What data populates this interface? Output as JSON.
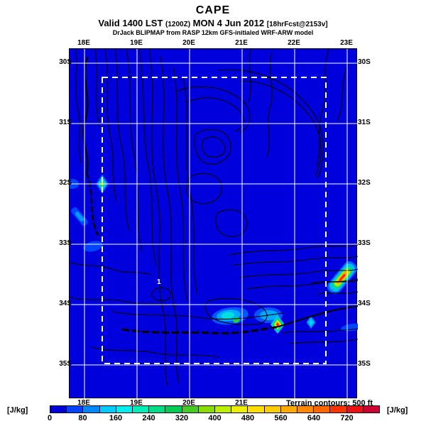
{
  "header": {
    "title": "CAPE",
    "valid_main_1": "Valid 1400 LST",
    "valid_small_1": "(1200Z)",
    "valid_main_2": "MON 4 Jun 2012",
    "valid_small_2": "[18hrFcst@2153v]",
    "model_line": "DrJack BLIPMAP from RASP 12km GFS-initialed WRF-ARW model"
  },
  "map": {
    "top_axis_labels": [
      "18E",
      "19E",
      "20E",
      "21E",
      "22E",
      "23E"
    ],
    "bottom_axis_labels": [
      "18E",
      "19E",
      "20E",
      "21E"
    ],
    "lat_labels": [
      "30S",
      "31S",
      "32S",
      "33S",
      "34S",
      "35S"
    ],
    "terrain_note": "Terrain contours: 500 ft",
    "contour_label": "1",
    "background_color": "#0000DD",
    "grid_color": "#FFFFFF",
    "contour_color": "#000000",
    "nest_boundary_color": "#FFFFFF"
  },
  "colorbar": {
    "unit_left": "[J/kg]",
    "unit_right": "[J/kg]",
    "tick_labels": [
      "0",
      "80",
      "160",
      "240",
      "320",
      "400",
      "480",
      "560",
      "640",
      "720"
    ],
    "min": 0,
    "max": 800,
    "step": 40,
    "colors": [
      "#0000DD",
      "#0044FF",
      "#0088FF",
      "#00CCFF",
      "#00EEEE",
      "#00EEBB",
      "#00DD88",
      "#00CC55",
      "#44CC22",
      "#88DD00",
      "#BBEE00",
      "#EEEE00",
      "#FFDD00",
      "#FFCC00",
      "#FFAA00",
      "#FF8800",
      "#FF6600",
      "#FF3300",
      "#EE1111",
      "#CC0033"
    ]
  },
  "chart_data": {
    "type": "heatmap",
    "title": "CAPE",
    "subtitle": "Valid 1400 LST (1200Z) MON 4 Jun 2012 [18hrFcst@2153v]",
    "source": "DrJack BLIPMAP from RASP 12km GFS-initialed WRF-ARW model",
    "units": "J/kg",
    "x_axis": {
      "type": "longitude",
      "labels": [
        "18E",
        "19E",
        "20E",
        "21E",
        "22E",
        "23E"
      ]
    },
    "y_axis": {
      "type": "latitude",
      "labels": [
        "30S",
        "31S",
        "32S",
        "33S",
        "34S",
        "35S"
      ]
    },
    "colorbar_range": [
      0,
      800
    ],
    "colorbar_ticks": [
      0,
      80,
      160,
      240,
      320,
      400,
      480,
      560,
      640,
      720
    ],
    "background_value": 0,
    "annotations": [
      "Terrain contours: 500 ft",
      "dashed white rectangle = inner model domain",
      "contour label 1"
    ],
    "hotspots": [
      {
        "lon": "18.3E",
        "lat": "32.0S",
        "peak_value": 320,
        "desc": "small diamond maximum on west coast"
      },
      {
        "lon": "18.1E",
        "lat": "32.4S",
        "peak_value": 120,
        "desc": "weak coastal streak"
      },
      {
        "lon": "18.4E",
        "lat": "33.0S",
        "peak_value": 80,
        "desc": "weak patch"
      },
      {
        "lon": "20.7E",
        "lat": "34.2S",
        "peak_value": 280,
        "desc": "broad south-coast patch with green core"
      },
      {
        "lon": "21.7E",
        "lat": "34.3S",
        "peak_value": 680,
        "desc": "intense small maximum on south coast"
      },
      {
        "lon": "22.3E",
        "lat": "34.3S",
        "peak_value": 160,
        "desc": "cyan diamond"
      },
      {
        "lon": "22.9E",
        "lat": "33.6S",
        "peak_value": 700,
        "desc": "elongated intense maximum, east side"
      }
    ]
  }
}
